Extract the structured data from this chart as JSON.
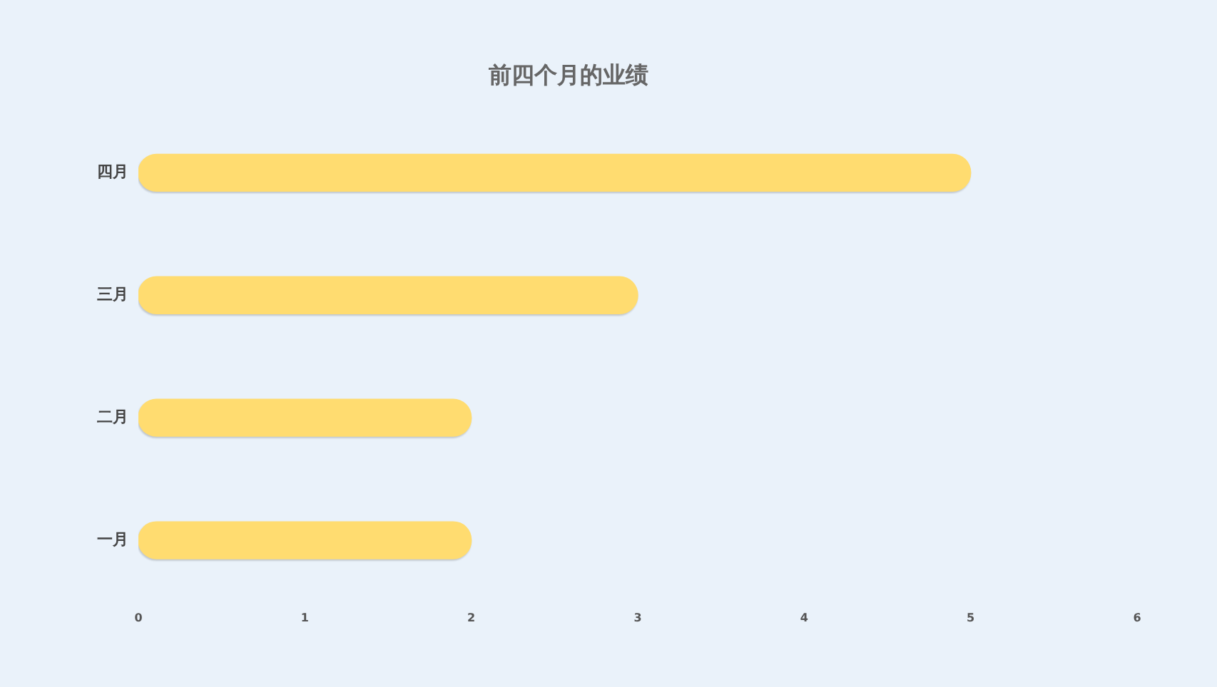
{
  "chart_data": {
    "type": "bar",
    "orientation": "horizontal",
    "title": "前四个月的业绩",
    "categories": [
      "四月",
      "三月",
      "二月",
      "一月"
    ],
    "values": [
      5,
      3,
      2,
      2
    ],
    "color": "#ffdc70",
    "xlim": [
      0,
      6
    ],
    "xticks": [
      0,
      1,
      2,
      3,
      4,
      5,
      6
    ]
  }
}
